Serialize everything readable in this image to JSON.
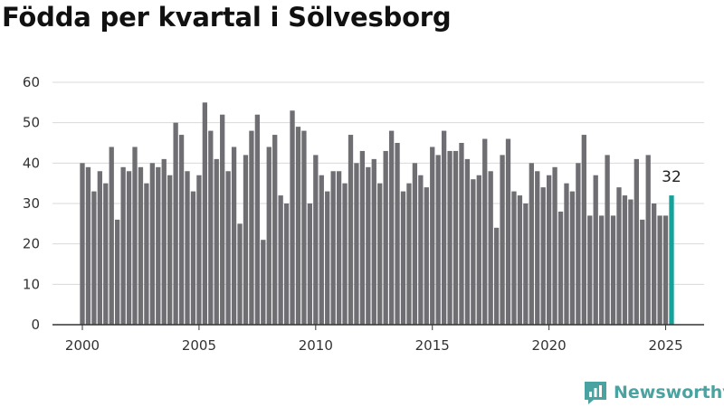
{
  "title": "Födda per kvartal i Sölvesborg",
  "brand": {
    "name": "Newsworthy"
  },
  "colors": {
    "bar": "#6e6e73",
    "highlight": "#14a29a",
    "grid": "#d9d9d9",
    "brand": "#4aa3a0"
  },
  "chart_data": {
    "type": "bar",
    "title": "Födda per kvartal i Sölvesborg",
    "xlabel": "",
    "ylabel": "",
    "ylim": [
      0,
      60
    ],
    "y_ticks": [
      0,
      10,
      20,
      30,
      40,
      50,
      60
    ],
    "x_ticks": [
      "2000",
      "2005",
      "2010",
      "2015",
      "2020",
      "2025"
    ],
    "grid": true,
    "categories": [
      "2000K1",
      "2000K2",
      "2000K3",
      "2000K4",
      "2001K1",
      "2001K2",
      "2001K3",
      "2001K4",
      "2002K1",
      "2002K2",
      "2002K3",
      "2002K4",
      "2003K1",
      "2003K2",
      "2003K3",
      "2003K4",
      "2004K1",
      "2004K2",
      "2004K3",
      "2004K4",
      "2005K1",
      "2005K2",
      "2005K3",
      "2005K4",
      "2006K1",
      "2006K2",
      "2006K3",
      "2006K4",
      "2007K1",
      "2007K2",
      "2007K3",
      "2007K4",
      "2008K1",
      "2008K2",
      "2008K3",
      "2008K4",
      "2009K1",
      "2009K2",
      "2009K3",
      "2009K4",
      "2010K1",
      "2010K2",
      "2010K3",
      "2010K4",
      "2011K1",
      "2011K2",
      "2011K3",
      "2011K4",
      "2012K1",
      "2012K2",
      "2012K3",
      "2012K4",
      "2013K1",
      "2013K2",
      "2013K3",
      "2013K4",
      "2014K1",
      "2014K2",
      "2014K3",
      "2014K4",
      "2015K1",
      "2015K2",
      "2015K3",
      "2015K4",
      "2016K1",
      "2016K2",
      "2016K3",
      "2016K4",
      "2017K1",
      "2017K2",
      "2017K3",
      "2017K4",
      "2018K1",
      "2018K2",
      "2018K3",
      "2018K4",
      "2019K1",
      "2019K2",
      "2019K3",
      "2019K4",
      "2020K1",
      "2020K2",
      "2020K3",
      "2020K4",
      "2021K1",
      "2021K2",
      "2021K3",
      "2021K4",
      "2022K1",
      "2022K2",
      "2022K3",
      "2022K4",
      "2023K1",
      "2023K2",
      "2023K3",
      "2023K4",
      "2024K1",
      "2024K2",
      "2024K3",
      "2024K4",
      "2025K1",
      "2025K2"
    ],
    "values": [
      40,
      39,
      33,
      38,
      35,
      44,
      26,
      39,
      38,
      44,
      39,
      35,
      40,
      39,
      41,
      37,
      50,
      47,
      38,
      33,
      37,
      55,
      48,
      41,
      52,
      38,
      44,
      25,
      42,
      48,
      52,
      21,
      44,
      47,
      32,
      30,
      53,
      49,
      48,
      30,
      42,
      37,
      33,
      38,
      38,
      35,
      47,
      40,
      43,
      39,
      41,
      35,
      43,
      48,
      45,
      33,
      35,
      40,
      37,
      34,
      44,
      42,
      48,
      43,
      43,
      45,
      41,
      36,
      37,
      46,
      38,
      24,
      42,
      46,
      33,
      32,
      30,
      40,
      38,
      34,
      37,
      39,
      28,
      35,
      33,
      40,
      47,
      27,
      37,
      27,
      42,
      27,
      34,
      32,
      31,
      41,
      26,
      42,
      30,
      27,
      27,
      32
    ],
    "highlight_label": "32"
  }
}
